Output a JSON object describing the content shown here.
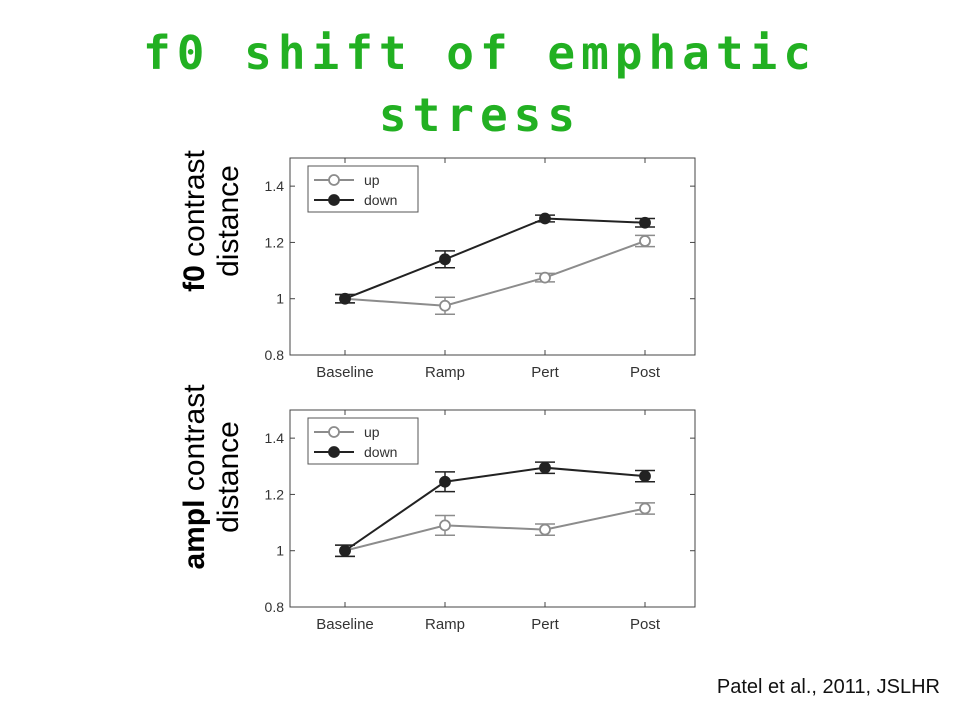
{
  "slide": {
    "title_line1": "f0 shift of emphatic",
    "title_line2": "stress",
    "title_color": "#22b022",
    "citation": "Patel et al., 2011, JSLHR"
  },
  "ylabels": {
    "top": {
      "bold": "f0",
      "rest": " contrast distance"
    },
    "bottom": {
      "bold": "ampl",
      "rest": " contrast distance"
    }
  },
  "chart_data": [
    {
      "type": "line",
      "categories": [
        "Baseline",
        "Ramp",
        "Pert",
        "Post"
      ],
      "ylim": [
        0.8,
        1.5
      ],
      "yticks": [
        0.8,
        1,
        1.2,
        1.4
      ],
      "ytick_labels": [
        "0.8",
        "1",
        "1.2",
        "1.4"
      ],
      "legend_position": "top-left",
      "series": [
        {
          "name": "up",
          "values": [
            1.0,
            0.975,
            1.075,
            1.205
          ],
          "errors": [
            0.015,
            0.03,
            0.015,
            0.02
          ],
          "color": "#8c8c8c",
          "marker": "open-circle"
        },
        {
          "name": "down",
          "values": [
            1.0,
            1.14,
            1.285,
            1.27
          ],
          "errors": [
            0.015,
            0.03,
            0.012,
            0.015
          ],
          "color": "#222222",
          "marker": "filled-circle"
        }
      ]
    },
    {
      "type": "line",
      "categories": [
        "Baseline",
        "Ramp",
        "Pert",
        "Post"
      ],
      "ylim": [
        0.8,
        1.5
      ],
      "yticks": [
        0.8,
        1,
        1.2,
        1.4
      ],
      "ytick_labels": [
        "0.8",
        "1",
        "1.2",
        "1.4"
      ],
      "legend_position": "top-left",
      "series": [
        {
          "name": "up",
          "values": [
            1.0,
            1.09,
            1.075,
            1.15
          ],
          "errors": [
            0.02,
            0.035,
            0.02,
            0.02
          ],
          "color": "#8c8c8c",
          "marker": "open-circle"
        },
        {
          "name": "down",
          "values": [
            1.0,
            1.245,
            1.295,
            1.265
          ],
          "errors": [
            0.02,
            0.035,
            0.02,
            0.02
          ],
          "color": "#222222",
          "marker": "filled-circle"
        }
      ]
    }
  ]
}
